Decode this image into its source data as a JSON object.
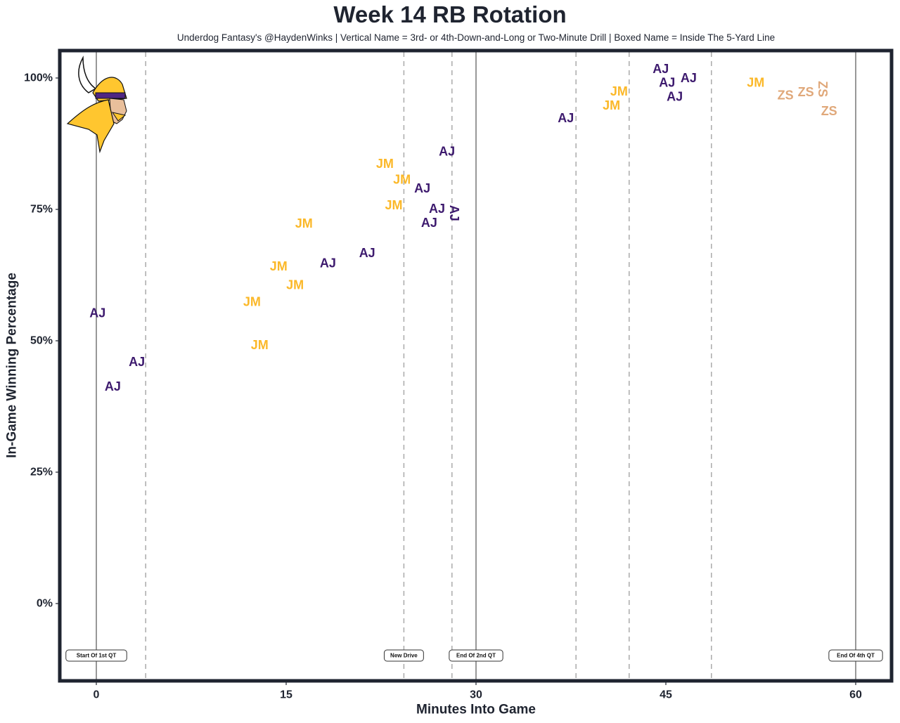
{
  "chart_data": {
    "type": "scatter",
    "title": "Week 14 RB Rotation",
    "subtitle": "Underdog Fantasy's @HaydenWinks | Vertical Name = 3rd- or 4th-Down-and-Long or Two-Minute Drill | Boxed Name = Inside The 5-Yard Line",
    "xlabel": "Minutes Into Game",
    "ylabel": "In-Game Winning Percentage",
    "xlim": [
      -2.9,
      63
    ],
    "ylim": [
      -15,
      105
    ],
    "x_ticks": [
      0,
      15,
      30,
      45,
      60
    ],
    "x_tick_labels": [
      "0",
      "15",
      "30",
      "45",
      "60"
    ],
    "y_ticks": [
      0,
      25,
      50,
      75,
      100
    ],
    "y_tick_labels": [
      "0%",
      "25%",
      "50%",
      "75%",
      "100%"
    ],
    "grid": false,
    "team_logo": "vikings-helmet-logo",
    "player_colors": {
      "AJ": "#3d1a6e",
      "JM": "#fbb829",
      "ZS": "#e0a87a"
    },
    "solid_lines": [
      0,
      30,
      60
    ],
    "dashed_lines": [
      3.9,
      24.3,
      28.1,
      37.9,
      42.1,
      48.6
    ],
    "annotations": [
      {
        "x": 0,
        "text": "Start Of 1st QT"
      },
      {
        "x": 24.3,
        "text": "New Drive"
      },
      {
        "x": 30,
        "text": "End Of 2nd QT"
      },
      {
        "x": 60,
        "text": "End Of 4th QT"
      }
    ],
    "points": [
      {
        "player": "AJ",
        "x": 0.1,
        "y": 55.3,
        "vertical": false,
        "boxed": false
      },
      {
        "player": "AJ",
        "x": 1.3,
        "y": 41.3,
        "vertical": false,
        "boxed": false
      },
      {
        "player": "AJ",
        "x": 3.2,
        "y": 46.0,
        "vertical": false,
        "boxed": false
      },
      {
        "player": "JM",
        "x": 12.3,
        "y": 57.4,
        "vertical": false,
        "boxed": false
      },
      {
        "player": "JM",
        "x": 12.9,
        "y": 49.2,
        "vertical": false,
        "boxed": false
      },
      {
        "player": "JM",
        "x": 14.4,
        "y": 64.2,
        "vertical": false,
        "boxed": false
      },
      {
        "player": "JM",
        "x": 15.7,
        "y": 60.6,
        "vertical": false,
        "boxed": false
      },
      {
        "player": "JM",
        "x": 16.4,
        "y": 72.3,
        "vertical": false,
        "boxed": false
      },
      {
        "player": "AJ",
        "x": 18.3,
        "y": 64.8,
        "vertical": false,
        "boxed": false
      },
      {
        "player": "AJ",
        "x": 21.4,
        "y": 66.7,
        "vertical": false,
        "boxed": false
      },
      {
        "player": "JM",
        "x": 22.8,
        "y": 83.7,
        "vertical": false,
        "boxed": false
      },
      {
        "player": "JM",
        "x": 23.5,
        "y": 75.8,
        "vertical": false,
        "boxed": false
      },
      {
        "player": "JM",
        "x": 24.2,
        "y": 80.7,
        "vertical": false,
        "boxed": false
      },
      {
        "player": "AJ",
        "x": 25.7,
        "y": 79.0,
        "vertical": false,
        "boxed": false
      },
      {
        "player": "AJ",
        "x": 26.3,
        "y": 72.7,
        "vertical": false,
        "boxed": false
      },
      {
        "player": "AJ",
        "x": 27.1,
        "y": 74.9,
        "vertical": false,
        "boxed": false
      },
      {
        "player": "AJ",
        "x": 27.7,
        "y": 86.0,
        "vertical": false,
        "boxed": false
      },
      {
        "player": "AJ",
        "x": 28.1,
        "y": 74.3,
        "vertical": true,
        "boxed": false
      },
      {
        "player": "AJ",
        "x": 37.1,
        "y": 92.4,
        "vertical": false,
        "boxed": false
      },
      {
        "player": "JM",
        "x": 40.7,
        "y": 95.2,
        "vertical": false,
        "boxed": false
      },
      {
        "player": "JM",
        "x": 41.3,
        "y": 97.1,
        "vertical": false,
        "boxed": false
      },
      {
        "player": "AJ",
        "x": 44.6,
        "y": 99.9,
        "vertical": false,
        "boxed": false
      },
      {
        "player": "AJ",
        "x": 45.1,
        "y": 99.6,
        "vertical": false,
        "boxed": false
      },
      {
        "player": "AJ",
        "x": 45.7,
        "y": 97.9,
        "vertical": false,
        "boxed": false
      },
      {
        "player": "AJ",
        "x": 46.8,
        "y": 100.0,
        "vertical": false,
        "boxed": false
      },
      {
        "player": "JM",
        "x": 52.1,
        "y": 99.1,
        "vertical": false,
        "boxed": false
      },
      {
        "player": "ZS",
        "x": 54.7,
        "y": 96.7,
        "vertical": false,
        "boxed": false
      },
      {
        "player": "ZS",
        "x": 56.3,
        "y": 97.3,
        "vertical": false,
        "boxed": false
      },
      {
        "player": "ZS",
        "x": 56.9,
        "y": 97.9,
        "vertical": true,
        "boxed": false
      },
      {
        "player": "ZS",
        "x": 57.9,
        "y": 93.7,
        "vertical": false,
        "boxed": false
      }
    ]
  }
}
